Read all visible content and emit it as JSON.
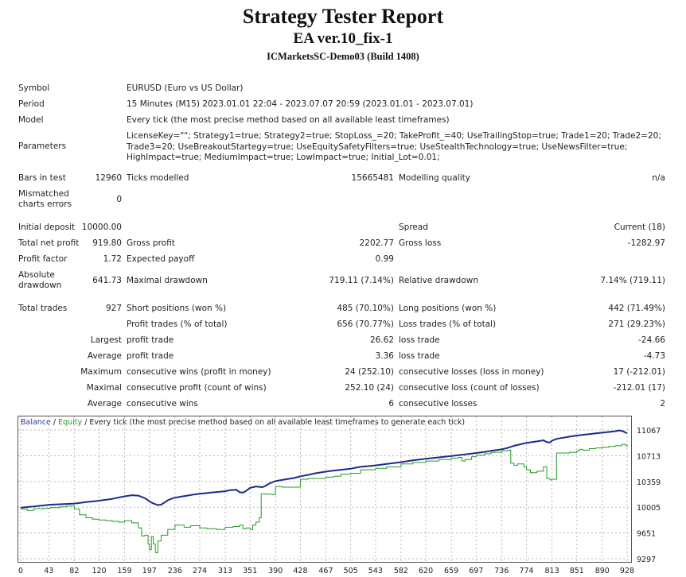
{
  "header": {
    "title": "Strategy Tester Report",
    "expert": "EA ver.10_fix-1",
    "server": "ICMarketsSC-Demo03 (Build 1408)"
  },
  "info": {
    "symbol_label": "Symbol",
    "symbol_value": "EURUSD (Euro vs US Dollar)",
    "period_label": "Period",
    "period_value": "15 Minutes (M15) 2023.01.01 22:04 - 2023.07.07 20:59 (2023.01.01 - 2023.07.01)",
    "model_label": "Model",
    "model_value": "Every tick (the most precise method based on all available least timeframes)",
    "parameters_label": "Parameters",
    "parameters_value": "LicenseKey=\"\"; Strategy1=true; Strategy2=true; StopLoss_=20; TakeProfit_=40; UseTrailingStop=true; Trade1=20; Trade2=20; Trade3=20; UseBreakoutStartegy=true; UseEquitySafetyFilters=true; UseStealthTechnology=true; UseNewsFilter=true; HighImpact=true; MediumImpact=true; LowImpact=true; Initial_Lot=0.01;"
  },
  "bars": {
    "bars_label": "Bars in test",
    "bars_value": "12960",
    "ticks_label": "Ticks modelled",
    "ticks_value": "15665481",
    "quality_label": "Modelling quality",
    "quality_value": "n/a",
    "mismatch_label_1": "Mismatched",
    "mismatch_label_2": "charts errors",
    "mismatch_value": "0"
  },
  "results": {
    "initial_deposit_label": "Initial deposit",
    "initial_deposit_value": "10000.00",
    "spread_label": "Spread",
    "spread_value": "Current (18)",
    "net_profit_label": "Total net profit",
    "net_profit_value": "919.80",
    "gross_profit_label": "Gross profit",
    "gross_profit_value": "2202.77",
    "gross_loss_label": "Gross loss",
    "gross_loss_value": "-1282.97",
    "profit_factor_label": "Profit factor",
    "profit_factor_value": "1.72",
    "expected_payoff_label": "Expected payoff",
    "expected_payoff_value": "0.99",
    "abs_dd_label_1": "Absolute",
    "abs_dd_label_2": "drawdown",
    "abs_dd_value": "641.73",
    "max_dd_label": "Maximal drawdown",
    "max_dd_value": "719.11 (7.14%)",
    "rel_dd_label": "Relative drawdown",
    "rel_dd_value": "7.14% (719.11)"
  },
  "trades": {
    "total_label": "Total trades",
    "total_value": "927",
    "short_label": "Short positions (won %)",
    "short_value": "485 (70.10%)",
    "long_label": "Long positions (won %)",
    "long_value": "442 (71.49%)",
    "profit_trades_label": "Profit trades (% of total)",
    "profit_trades_value": "656 (70.77%)",
    "loss_trades_label": "Loss trades (% of total)",
    "loss_trades_value": "271 (29.23%)",
    "largest_label": "Largest",
    "largest_profit_label": "profit trade",
    "largest_profit_value": "26.62",
    "largest_loss_label": "loss trade",
    "largest_loss_value": "-24.66",
    "average_label": "Average",
    "average_profit_label": "profit trade",
    "average_profit_value": "3.36",
    "average_loss_label": "loss trade",
    "average_loss_value": "-4.73",
    "maximum_label": "Maximum",
    "max_wins_label": "consecutive wins (profit in money)",
    "max_wins_value": "24 (252.10)",
    "max_losses_label": "consecutive losses (loss in money)",
    "max_losses_value": "17 (-212.01)",
    "maximal_label": "Maximal",
    "maximal_profit_label": "consecutive profit (count of wins)",
    "maximal_profit_value": "252.10 (24)",
    "maximal_loss_label": "consecutive loss (count of losses)",
    "maximal_loss_value": "-212.01 (17)",
    "avg_label": "Average",
    "avg_wins_label": "consecutive wins",
    "avg_wins_value": "6",
    "avg_losses_label": "consecutive losses",
    "avg_losses_value": "2"
  },
  "chart_data": {
    "type": "line",
    "legend_balance": "Balance",
    "legend_sep": " / ",
    "legend_equity": "Equity",
    "legend_rest": " / Every tick (the most precise method based on all available least timeframes to generate each tick)",
    "y_ticks": [
      "11067",
      "10713",
      "10359",
      "10005",
      "9651",
      "9297"
    ],
    "x_ticks": [
      "0",
      "43",
      "82",
      "120",
      "159",
      "197",
      "236",
      "274",
      "313",
      "351",
      "390",
      "428",
      "467",
      "505",
      "543",
      "582",
      "620",
      "659",
      "697",
      "736",
      "774",
      "813",
      "851",
      "890",
      "928"
    ],
    "ylim": [
      9297,
      11067
    ],
    "xlim": [
      0,
      928
    ],
    "colors": {
      "balance": "#1a2a8c",
      "equity": "#229922",
      "grid": "#b8b8b8",
      "legend_text": "#2a3a99"
    },
    "series": [
      {
        "name": "Balance",
        "x": [
          0,
          20,
          45,
          60,
          82,
          100,
          120,
          140,
          159,
          170,
          180,
          190,
          200,
          205,
          210,
          215,
          220,
          225,
          230,
          236,
          245,
          255,
          265,
          274,
          290,
          313,
          320,
          330,
          335,
          340,
          345,
          351,
          360,
          370,
          375,
          380,
          390,
          400,
          410,
          420,
          428,
          440,
          450,
          467,
          480,
          505,
          520,
          543,
          560,
          582,
          600,
          620,
          640,
          659,
          680,
          697,
          710,
          720,
          736,
          745,
          755,
          765,
          774,
          790,
          800,
          805,
          810,
          813,
          820,
          830,
          840,
          851,
          860,
          870,
          880,
          890,
          900,
          910,
          915,
          920,
          925,
          928
        ],
        "y": [
          10000,
          10015,
          10040,
          10045,
          10055,
          10075,
          10095,
          10120,
          10155,
          10170,
          10165,
          10130,
          10070,
          10050,
          10035,
          10040,
          10070,
          10100,
          10120,
          10135,
          10150,
          10165,
          10180,
          10190,
          10205,
          10225,
          10240,
          10245,
          10210,
          10205,
          10230,
          10270,
          10290,
          10280,
          10300,
          10330,
          10365,
          10380,
          10395,
          10410,
          10430,
          10450,
          10470,
          10495,
          10510,
          10535,
          10560,
          10580,
          10600,
          10625,
          10650,
          10670,
          10690,
          10710,
          10730,
          10750,
          10765,
          10780,
          10800,
          10820,
          10850,
          10870,
          10890,
          10910,
          10925,
          10900,
          10895,
          10920,
          10945,
          10960,
          10975,
          10990,
          11000,
          11010,
          11020,
          11030,
          11040,
          11050,
          11060,
          11055,
          11035,
          11020
        ]
      },
      {
        "name": "Equity",
        "x": [
          0,
          10,
          20,
          35,
          45,
          60,
          70,
          82,
          90,
          100,
          110,
          120,
          130,
          140,
          150,
          159,
          170,
          180,
          185,
          190,
          195,
          197,
          200,
          203,
          206,
          210,
          215,
          225,
          236,
          250,
          260,
          274,
          285,
          300,
          313,
          325,
          335,
          340,
          345,
          351,
          355,
          360,
          365,
          368,
          375,
          385,
          390,
          400,
          410,
          428,
          440,
          450,
          467,
          480,
          490,
          505,
          520,
          543,
          560,
          582,
          600,
          620,
          640,
          659,
          670,
          675,
          680,
          690,
          697,
          710,
          720,
          736,
          745,
          750,
          755,
          760,
          770,
          774,
          780,
          790,
          800,
          805,
          810,
          813,
          820,
          830,
          840,
          851,
          855,
          860,
          870,
          880,
          890,
          900,
          910,
          920,
          925,
          928
        ],
        "y": [
          9980,
          9960,
          9985,
          9990,
          10000,
          10010,
          10020,
          9980,
          9900,
          9860,
          9840,
          9830,
          9820,
          9810,
          9800,
          9820,
          9790,
          9720,
          9610,
          9620,
          9500,
          9420,
          9600,
          9500,
          9380,
          9540,
          9620,
          9700,
          9760,
          9730,
          9750,
          9720,
          9710,
          9700,
          9730,
          9740,
          9760,
          9710,
          9720,
          9700,
          9760,
          9800,
          9860,
          10190,
          10185,
          10180,
          10290,
          10280,
          10280,
          10390,
          10400,
          10400,
          10420,
          10430,
          10460,
          10470,
          10520,
          10540,
          10560,
          10600,
          10620,
          10640,
          10660,
          10680,
          10690,
          10640,
          10660,
          10700,
          10720,
          10740,
          10760,
          10780,
          10790,
          10610,
          10580,
          10600,
          10560,
          10520,
          10480,
          10500,
          10560,
          10400,
          10380,
          10390,
          10750,
          10750,
          10760,
          10780,
          10800,
          10790,
          10810,
          10820,
          10830,
          10840,
          10850,
          10870,
          10860,
          10830
        ]
      }
    ]
  }
}
